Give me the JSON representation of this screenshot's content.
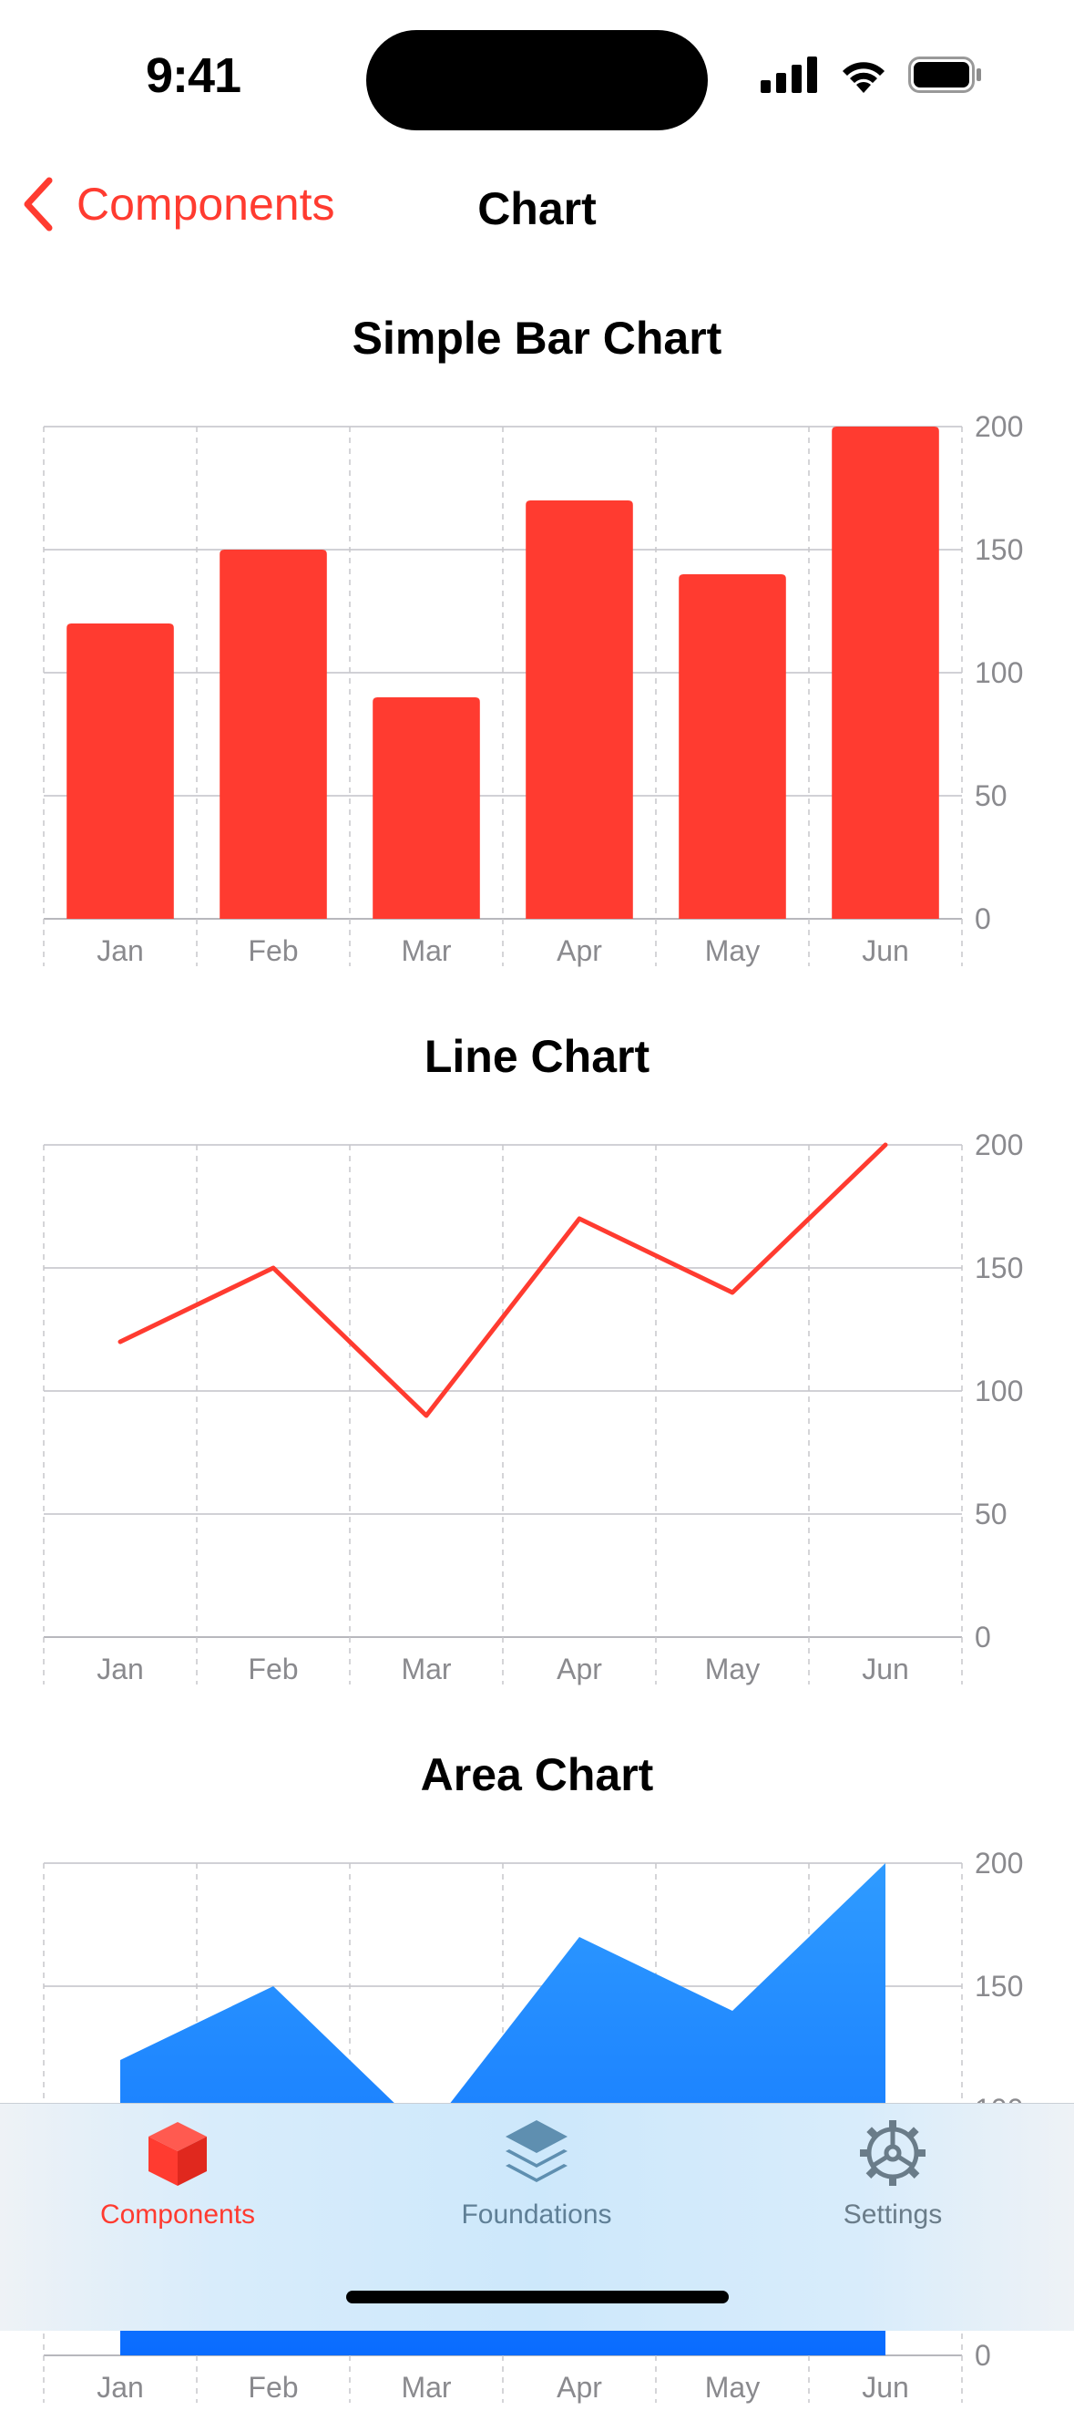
{
  "status_bar": {
    "time": "9:41"
  },
  "nav": {
    "back_label": "Components",
    "title": "Chart"
  },
  "charts": [
    {
      "type": "bar",
      "title": "Simple Bar Chart",
      "categories": [
        "Jan",
        "Feb",
        "Mar",
        "Apr",
        "May",
        "Jun"
      ],
      "values": [
        120,
        150,
        90,
        170,
        140,
        200
      ],
      "ylim": [
        0,
        200
      ],
      "yticks": [
        0,
        50,
        100,
        150,
        200
      ],
      "color": "#FF3B30",
      "grid": true,
      "y_axis_side": "right"
    },
    {
      "type": "line",
      "title": "Line Chart",
      "categories": [
        "Jan",
        "Feb",
        "Mar",
        "Apr",
        "May",
        "Jun"
      ],
      "values": [
        120,
        150,
        90,
        170,
        140,
        200
      ],
      "ylim": [
        0,
        200
      ],
      "yticks": [
        0,
        50,
        100,
        150,
        200
      ],
      "color": "#FF3B30",
      "grid": true,
      "y_axis_side": "right"
    },
    {
      "type": "area",
      "title": "Area Chart",
      "categories": [
        "Jan",
        "Feb",
        "Mar",
        "Apr",
        "May",
        "Jun"
      ],
      "values": [
        120,
        150,
        90,
        170,
        140,
        200
      ],
      "ylim": [
        0,
        200
      ],
      "yticks": [
        0,
        50,
        100,
        150,
        200
      ],
      "color": "#1E90FF",
      "grid": true,
      "y_axis_side": "right"
    }
  ],
  "chart_data": [
    {
      "type": "bar",
      "title": "Simple Bar Chart",
      "categories": [
        "Jan",
        "Feb",
        "Mar",
        "Apr",
        "May",
        "Jun"
      ],
      "values": [
        120,
        150,
        90,
        170,
        140,
        200
      ],
      "ylim": [
        0,
        200
      ]
    },
    {
      "type": "line",
      "title": "Line Chart",
      "categories": [
        "Jan",
        "Feb",
        "Mar",
        "Apr",
        "May",
        "Jun"
      ],
      "values": [
        120,
        150,
        90,
        170,
        140,
        200
      ],
      "ylim": [
        0,
        200
      ]
    },
    {
      "type": "area",
      "title": "Area Chart",
      "categories": [
        "Jan",
        "Feb",
        "Mar",
        "Apr",
        "May",
        "Jun"
      ],
      "values": [
        120,
        150,
        90,
        170,
        140,
        200
      ],
      "ylim": [
        0,
        200
      ]
    }
  ],
  "tab_bar": {
    "items": [
      {
        "label": "Components",
        "icon": "cube-icon",
        "active": true
      },
      {
        "label": "Foundations",
        "icon": "layers-icon",
        "active": false
      },
      {
        "label": "Settings",
        "icon": "gear-icon",
        "active": false
      }
    ],
    "active_color": "#FF3B30",
    "inactive_color": "#5f7f96"
  }
}
